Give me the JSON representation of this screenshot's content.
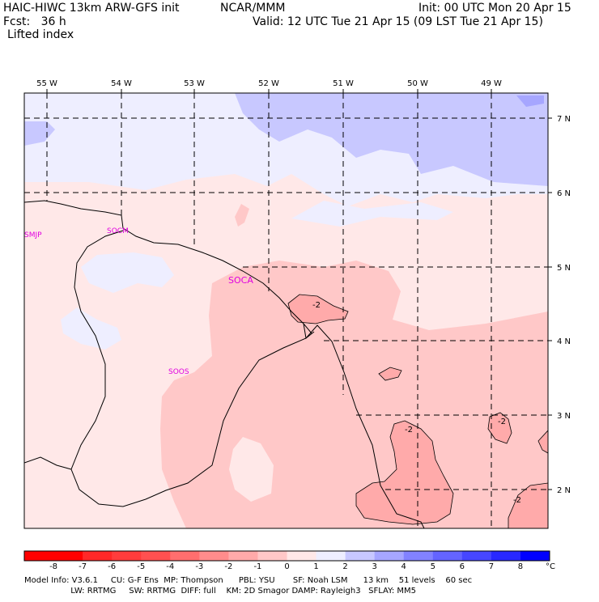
{
  "header": {
    "model_title": "HAIC-HIWC 13km ARW-GFS init",
    "org": "NCAR/MMM",
    "init": "Init: 00 UTC Mon 20 Apr 15",
    "fcst": "Fcst:   36 h",
    "valid": "Valid: 12 UTC Tue 21 Apr 15 (09 LST Tue 21 Apr 15)",
    "field": "Lifted index"
  },
  "map": {
    "lon_labels": [
      "55 W",
      "54 W",
      "53 W",
      "52 W",
      "51 W",
      "50 W",
      "49 W"
    ],
    "lat_labels": [
      "7 N",
      "6 N",
      "5 N",
      "4 N",
      "3 N",
      "2 N"
    ],
    "stations": [
      "SMJP",
      "SOCM",
      "SOCA",
      "SOOS"
    ],
    "contour_labels": [
      "-2",
      "-2",
      "-2",
      "-2"
    ]
  },
  "colorbar": {
    "tick_labels": [
      "-8",
      "-7",
      "-6",
      "-5",
      "-4",
      "-3",
      "-2",
      "-1",
      "0",
      "1",
      "2",
      "3",
      "4",
      "5",
      "6",
      "7",
      "8"
    ],
    "unit": "°C",
    "colors": [
      "#ff0000",
      "#ff2828",
      "#ff3c3c",
      "#ff5050",
      "#ff6e6e",
      "#ff8c8c",
      "#ffaaaa",
      "#ffc8c8",
      "#ffe8e8",
      "#eeeeff",
      "#c8c8ff",
      "#a6a6ff",
      "#8282ff",
      "#6464ff",
      "#4646ff",
      "#2828ff",
      "#0000ff"
    ]
  },
  "footer": {
    "line1": "Model Info: V3.6.1     CU: G-F Ens  MP: Thompson      PBL: YSU       SF: Noah LSM      13 km    51 levels    60 sec",
    "line2": "                  LW: RRTMG     SW: RRTMG  DIFF: full    KM: 2D Smagor DAMP: Rayleigh3   SFLAY: MM5"
  }
}
